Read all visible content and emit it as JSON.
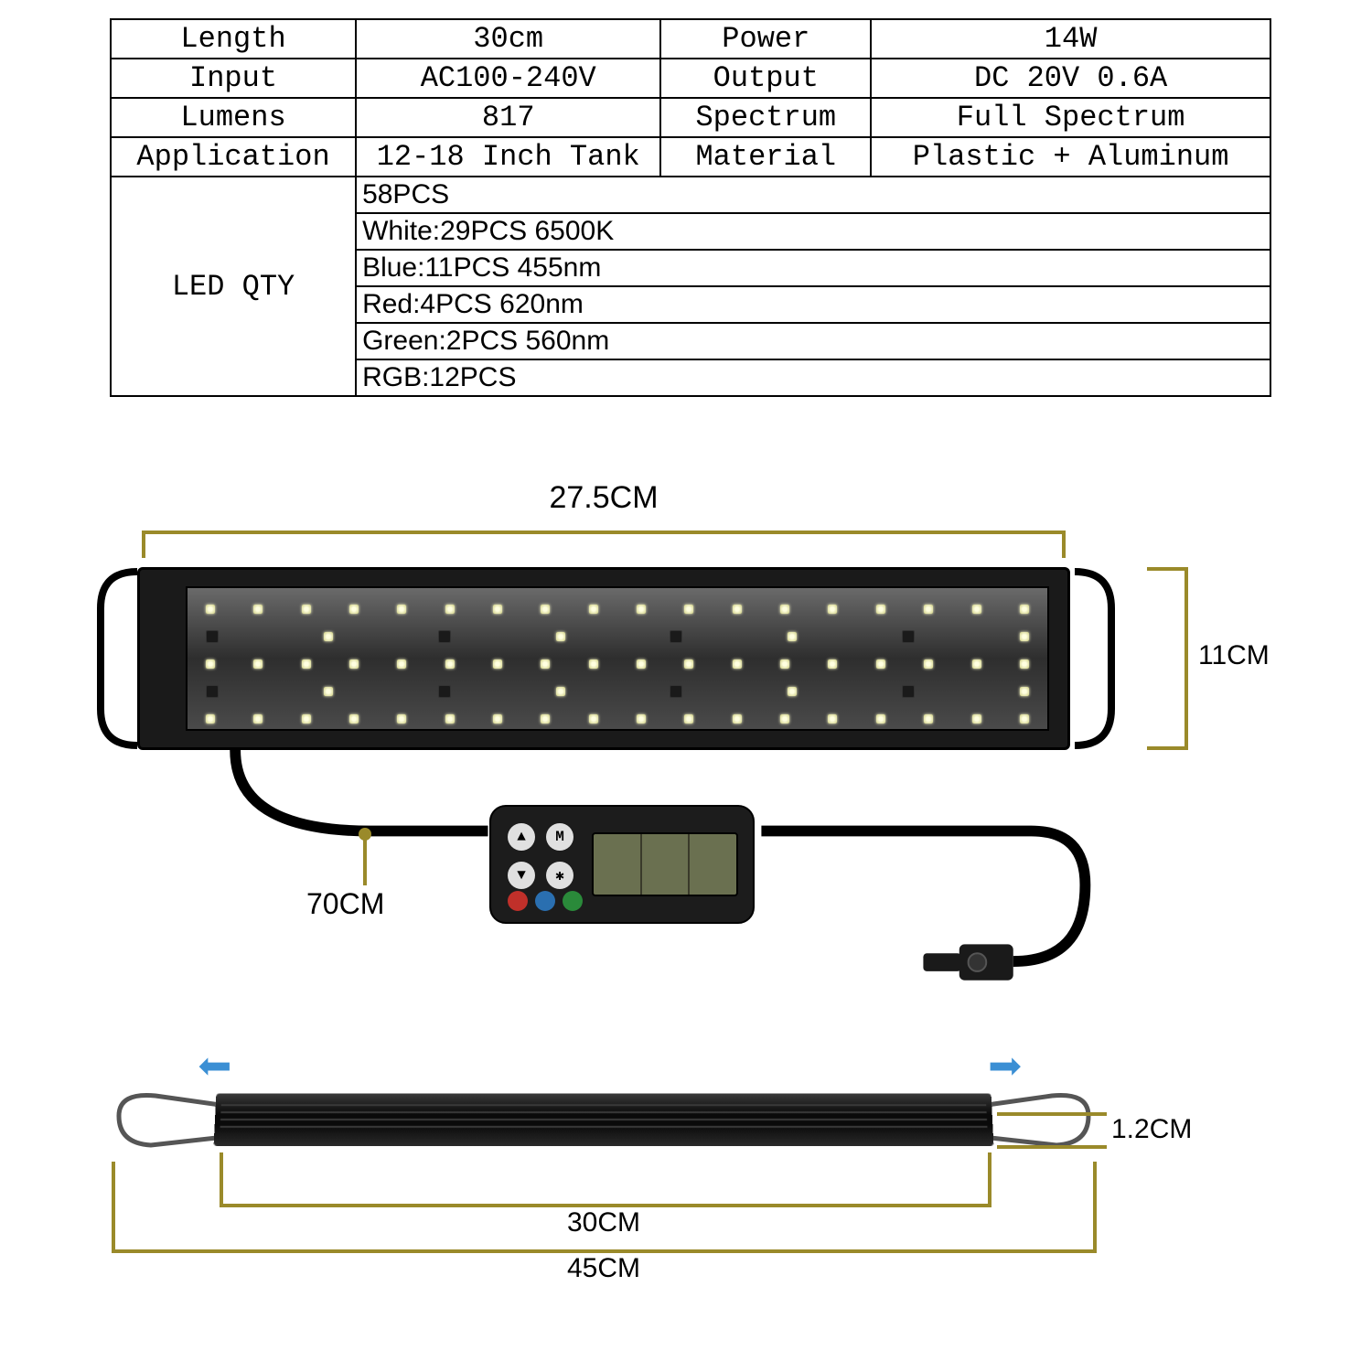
{
  "table": {
    "rows": [
      {
        "l1": "Length",
        "v1": "30cm",
        "l2": "Power",
        "v2": "14W"
      },
      {
        "l1": "Input",
        "v1": "AC100-240V",
        "l2": "Output",
        "v2": "DC 20V 0.6A"
      },
      {
        "l1": "Lumens",
        "v1": "817",
        "l2": "Spectrum",
        "v2": "Full Spectrum"
      },
      {
        "l1": "Application",
        "v1": "12-18 Inch Tank",
        "l2": "Material",
        "v2": "Plastic + Aluminum"
      }
    ],
    "led_label": "LED QTY",
    "led_details": [
      "58PCS",
      "White:29PCS 6500K",
      "Blue:11PCS 455nm",
      "Red:4PCS 620nm",
      "Green:2PCS 560nm",
      "RGB:12PCS"
    ]
  },
  "dims": {
    "top_width": "27.5CM",
    "height": "11CM",
    "cable": "70CM",
    "thickness": "1.2CM",
    "body_width": "30CM",
    "full_width": "45CM"
  },
  "colors": {
    "dim_line": "#9a8a2a",
    "arrow": "#3b8fd4",
    "panel_bg": "#1a1a1a"
  },
  "controller": {
    "buttons": [
      "▲",
      "M",
      "▼",
      "✱"
    ]
  }
}
